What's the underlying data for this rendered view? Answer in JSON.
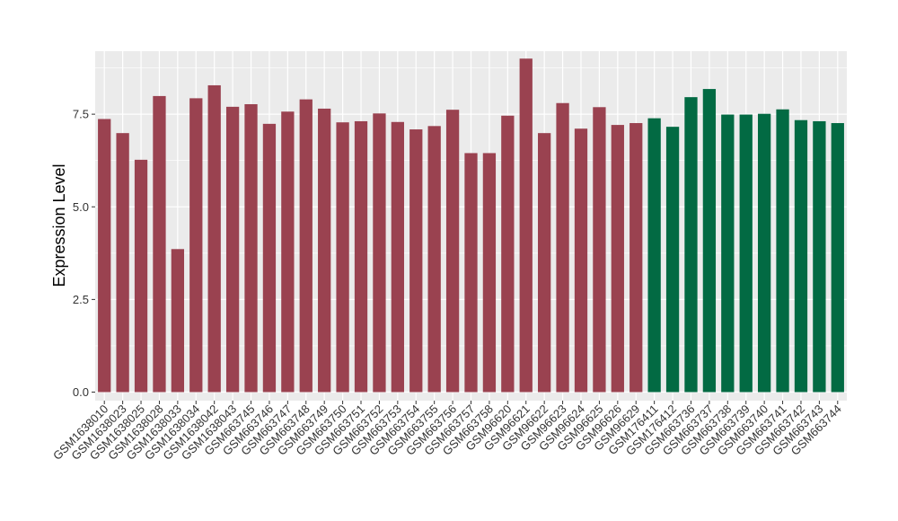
{
  "chart_data": {
    "type": "bar",
    "title": "",
    "xlabel": "",
    "ylabel": "Expression Level",
    "ylim": [
      -0.23,
      9.2
    ],
    "yticks": [
      0.0,
      2.5,
      5.0,
      7.5
    ],
    "ytick_labels": [
      "0.0",
      "2.5",
      "5.0",
      "7.5"
    ],
    "grid": true,
    "background": "#ebebeb",
    "grid_color": "#ffffff",
    "categories": [
      "GSM1638010",
      "GSM1638023",
      "GSM1638025",
      "GSM1638028",
      "GSM1638033",
      "GSM1638034",
      "GSM1638042",
      "GSM1638043",
      "GSM663745",
      "GSM663746",
      "GSM663747",
      "GSM663748",
      "GSM663749",
      "GSM663750",
      "GSM663751",
      "GSM663752",
      "GSM663753",
      "GSM663754",
      "GSM663755",
      "GSM663756",
      "GSM663757",
      "GSM663758",
      "GSM96620",
      "GSM96621",
      "GSM96622",
      "GSM96623",
      "GSM96624",
      "GSM96625",
      "GSM96626",
      "GSM96629",
      "GSM176411",
      "GSM176412",
      "GSM663736",
      "GSM663737",
      "GSM663738",
      "GSM663739",
      "GSM663740",
      "GSM663741",
      "GSM663742",
      "GSM663743",
      "GSM663744"
    ],
    "values": [
      7.37,
      6.99,
      6.27,
      7.99,
      3.86,
      7.93,
      8.28,
      7.7,
      7.77,
      7.24,
      7.57,
      7.9,
      7.65,
      7.28,
      7.31,
      7.52,
      7.29,
      7.09,
      7.18,
      7.62,
      6.45,
      6.45,
      7.46,
      9.0,
      6.99,
      7.8,
      7.11,
      7.69,
      7.21,
      7.26,
      7.39,
      7.16,
      7.96,
      8.18,
      7.49,
      7.49,
      7.51,
      7.63,
      7.34,
      7.31,
      7.26
    ],
    "bar_colors": [
      "#9a4250",
      "#9a4250",
      "#9a4250",
      "#9a4250",
      "#9a4250",
      "#9a4250",
      "#9a4250",
      "#9a4250",
      "#9a4250",
      "#9a4250",
      "#9a4250",
      "#9a4250",
      "#9a4250",
      "#9a4250",
      "#9a4250",
      "#9a4250",
      "#9a4250",
      "#9a4250",
      "#9a4250",
      "#9a4250",
      "#9a4250",
      "#9a4250",
      "#9a4250",
      "#9a4250",
      "#9a4250",
      "#9a4250",
      "#9a4250",
      "#9a4250",
      "#9a4250",
      "#9a4250",
      "#026a43",
      "#026a43",
      "#026a43",
      "#026a43",
      "#026a43",
      "#026a43",
      "#026a43",
      "#026a43",
      "#026a43",
      "#026a43",
      "#026a43"
    ]
  }
}
